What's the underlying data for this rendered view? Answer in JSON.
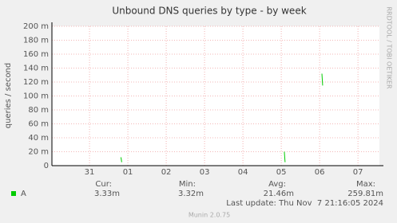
{
  "chart_data": {
    "type": "line",
    "title": "Unbound DNS queries by type - by week",
    "y_label": "queries / second",
    "side_text": "RRDTOOL / TOBI OETIKER",
    "xlim": [
      -0.98,
      7.56
    ],
    "xticks": [
      {
        "value": 0,
        "label": "31"
      },
      {
        "value": 1,
        "label": "01"
      },
      {
        "value": 2,
        "label": "02"
      },
      {
        "value": 3,
        "label": "03"
      },
      {
        "value": 4,
        "label": "04"
      },
      {
        "value": 5,
        "label": "05"
      },
      {
        "value": 6,
        "label": "06"
      },
      {
        "value": 7,
        "label": "07"
      }
    ],
    "ylim": [
      0,
      200
    ],
    "yticks": [
      0,
      {
        "value": 20,
        "label": "20 m"
      },
      {
        "value": 40,
        "label": "40 m"
      },
      {
        "value": 60,
        "label": "60 m"
      },
      {
        "value": 80,
        "label": "80 m"
      },
      {
        "value": 100,
        "label": "100 m"
      },
      {
        "value": 120,
        "label": "120 m"
      },
      {
        "value": 140,
        "label": "140 m"
      },
      {
        "value": 160,
        "label": "160 m"
      },
      {
        "value": 180,
        "label": "180 m"
      },
      {
        "value": 200,
        "label": "200 m"
      }
    ],
    "grid": true,
    "x": [
      0.82,
      0.84,
      3.0,
      5.08,
      5.1,
      5.5,
      6.06,
      6.08
    ],
    "series": [
      {
        "name": "A",
        "color": "#00cc00",
        "values": [
          12,
          5,
          null,
          20,
          5,
          null,
          132,
          115
        ]
      }
    ],
    "stat_headers": [
      "Cur:",
      "Min:",
      "Avg:",
      "Max:"
    ],
    "stat_values": [
      "3.33m",
      "3.32m",
      "21.46m",
      "259.81m"
    ],
    "last_update": "Last update: Thu Nov  7 21:16:05 2024",
    "footer": "Munin 2.0.75"
  }
}
